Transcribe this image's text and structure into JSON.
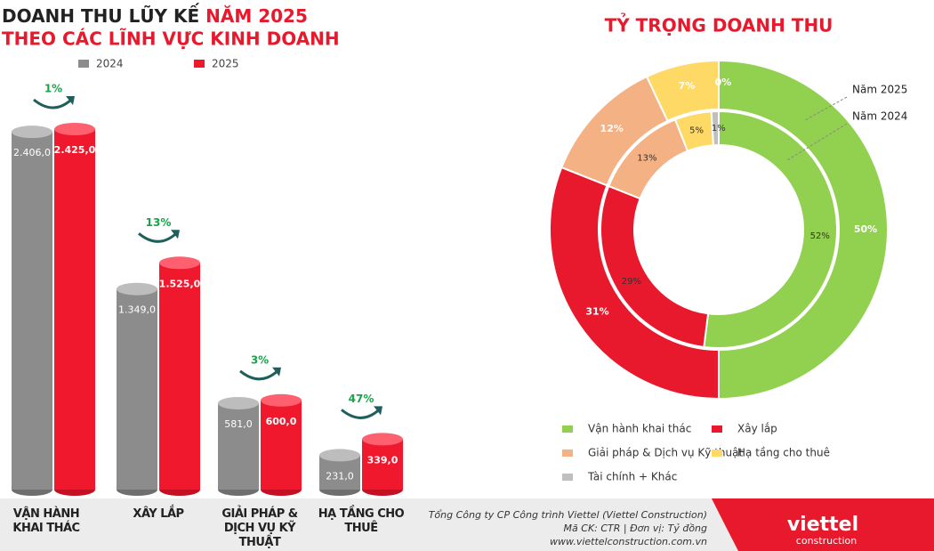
{
  "chart_data": [
    {
      "type": "bar",
      "title_parts": [
        "DOANH THU LŨY KẾ ",
        "NĂM 2025"
      ],
      "subtitle": "THEO CÁC LĨNH VỰC KINH DOANH",
      "categories": [
        "VẬN HÀNH KHAI THÁC",
        "XÂY LẮP",
        "GIẢI PHÁP & DỊCH VỤ KỸ THUẬT",
        "HẠ TẦNG CHO THUÊ"
      ],
      "series": [
        {
          "name": "2024",
          "color": "#8c8c8c",
          "values": [
            2406,
            1349,
            581,
            231
          ],
          "value_labels": [
            "2.406,0",
            "1.349,0",
            "581,0",
            "231,0"
          ]
        },
        {
          "name": "2025",
          "color": "#f0182d",
          "values": [
            2425,
            1525,
            600,
            339
          ],
          "value_labels": [
            "2.425,0",
            "1.525,0",
            "600,0",
            "339,0"
          ]
        }
      ],
      "growth": [
        1,
        13,
        3,
        47
      ],
      "growth_labels": [
        "1%",
        "13%",
        "3%",
        "47%"
      ]
    },
    {
      "type": "pie",
      "title": "TỶ TRỌNG DOANH THU",
      "categories": [
        "Vận hành khai thác",
        "Xây lắp",
        "Giải pháp & Dịch vụ Kỹ thuật",
        "Hạ tầng cho thuê",
        "Tài chính + Khác"
      ],
      "colors": [
        "#92d050",
        "#e8192c",
        "#f4b183",
        "#ffd966",
        "#bfbfbf"
      ],
      "series": [
        {
          "name": "Năm 2025",
          "values": [
            50,
            31,
            12,
            7,
            0
          ]
        },
        {
          "name": "Năm 2024",
          "values": [
            52,
            29,
            13,
            5,
            1
          ]
        }
      ]
    }
  ],
  "footer": {
    "company": "Tổng Công ty CP Công trình Viettel (Viettel Construction)",
    "info": "Mã CK: CTR  |  Đơn vị: Tỷ đồng",
    "website": "www.viettelconstruction.com.vn",
    "logo": "viettel",
    "logo_sub": "construction"
  }
}
